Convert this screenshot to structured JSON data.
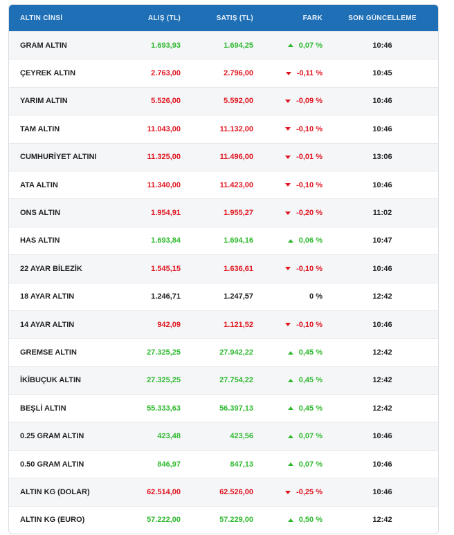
{
  "colors": {
    "header_bg": "#1e6fb5",
    "up": "#2fb92f",
    "down": "#e0141e"
  },
  "header": {
    "name": "ALTIN CİNSİ",
    "buy": "ALIŞ (TL)",
    "sell": "SATIŞ (TL)",
    "diff": "FARK",
    "updated": "SON GÜNCELLEME"
  },
  "rows": [
    {
      "name": "GRAM ALTIN",
      "buy": "1.693,93",
      "sell": "1.694,25",
      "diff": "0,07 %",
      "time": "10:46",
      "trend": "up"
    },
    {
      "name": "ÇEYREK ALTIN",
      "buy": "2.763,00",
      "sell": "2.796,00",
      "diff": "-0,11 %",
      "time": "10:45",
      "trend": "down"
    },
    {
      "name": "YARIM ALTIN",
      "buy": "5.526,00",
      "sell": "5.592,00",
      "diff": "-0,09 %",
      "time": "10:46",
      "trend": "down"
    },
    {
      "name": "TAM ALTIN",
      "buy": "11.043,00",
      "sell": "11.132,00",
      "diff": "-0,10 %",
      "time": "10:46",
      "trend": "down"
    },
    {
      "name": "CUMHURİYET ALTINI",
      "buy": "11.325,00",
      "sell": "11.496,00",
      "diff": "-0,01 %",
      "time": "13:06",
      "trend": "down"
    },
    {
      "name": "ATA ALTIN",
      "buy": "11.340,00",
      "sell": "11.423,00",
      "diff": "-0,10 %",
      "time": "10:46",
      "trend": "down"
    },
    {
      "name": "ONS ALTIN",
      "buy": "1.954,91",
      "sell": "1.955,27",
      "diff": "-0,20 %",
      "time": "11:02",
      "trend": "down"
    },
    {
      "name": "HAS ALTIN",
      "buy": "1.693,84",
      "sell": "1.694,16",
      "diff": "0,06 %",
      "time": "10:47",
      "trend": "up"
    },
    {
      "name": "22 AYAR BİLEZİK",
      "buy": "1.545,15",
      "sell": "1.636,61",
      "diff": "-0,10 %",
      "time": "10:46",
      "trend": "down"
    },
    {
      "name": "18 AYAR ALTIN",
      "buy": "1.246,71",
      "sell": "1.247,57",
      "diff": "0 %",
      "time": "12:42",
      "trend": "flat"
    },
    {
      "name": "14 AYAR ALTIN",
      "buy": "942,09",
      "sell": "1.121,52",
      "diff": "-0,10 %",
      "time": "10:46",
      "trend": "down"
    },
    {
      "name": "GREMSE ALTIN",
      "buy": "27.325,25",
      "sell": "27.942,22",
      "diff": "0,45 %",
      "time": "12:42",
      "trend": "up"
    },
    {
      "name": "İKİBUÇUK ALTIN",
      "buy": "27.325,25",
      "sell": "27.754,22",
      "diff": "0,45 %",
      "time": "12:42",
      "trend": "up"
    },
    {
      "name": "BEŞLİ ALTIN",
      "buy": "55.333,63",
      "sell": "56.397,13",
      "diff": "0,45 %",
      "time": "12:42",
      "trend": "up"
    },
    {
      "name": "0.25 GRAM ALTIN",
      "buy": "423,48",
      "sell": "423,56",
      "diff": "0,07 %",
      "time": "10:46",
      "trend": "up"
    },
    {
      "name": "0.50 GRAM ALTIN",
      "buy": "846,97",
      "sell": "847,13",
      "diff": "0,07 %",
      "time": "10:46",
      "trend": "up"
    },
    {
      "name": "ALTIN KG (DOLAR)",
      "buy": "62.514,00",
      "sell": "62.526,00",
      "diff": "-0,25 %",
      "time": "10:46",
      "trend": "down"
    },
    {
      "name": "ALTIN KG (EURO)",
      "buy": "57.222,00",
      "sell": "57.229,00",
      "diff": "0,50 %",
      "time": "12:42",
      "trend": "up"
    }
  ]
}
